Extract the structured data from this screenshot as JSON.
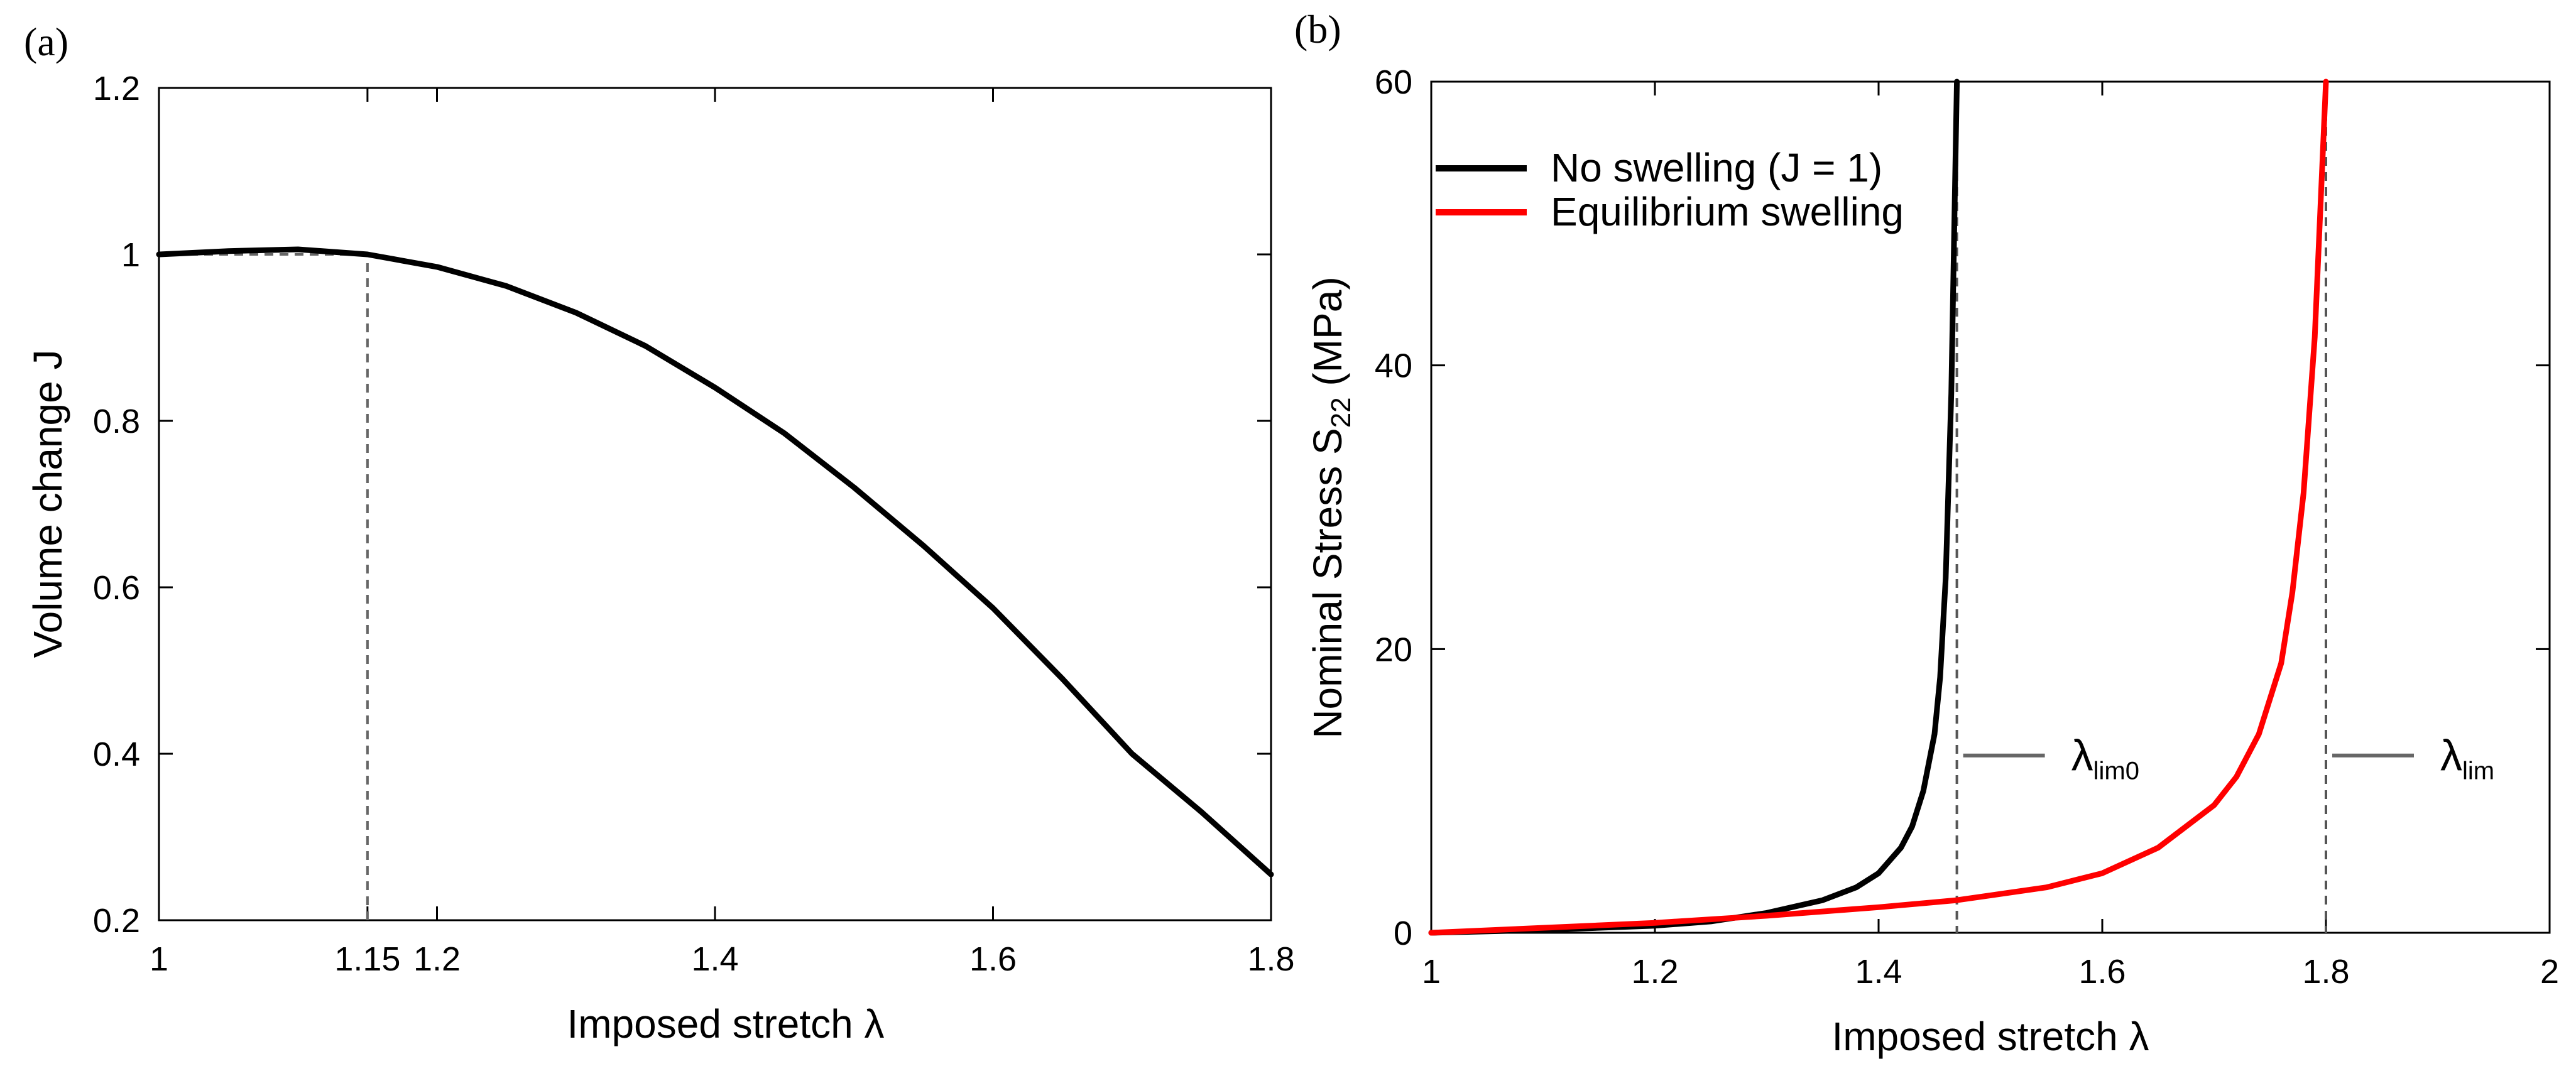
{
  "figure": {
    "panel_a_label": "(a)",
    "panel_b_label": "(b)"
  },
  "chart_data": [
    {
      "type": "line",
      "panel": "(a)",
      "xlabel": "Imposed stretch λ",
      "ylabel": "Volume change J",
      "xlim": [
        1,
        1.8
      ],
      "ylim": [
        0.2,
        1.2
      ],
      "xticks": [
        1,
        1.15,
        1.2,
        1.4,
        1.6,
        1.8
      ],
      "xtick_labels": [
        "1",
        "1.15",
        "1.2",
        "1.4",
        "1.6",
        "1.8"
      ],
      "yticks": [
        0.2,
        0.4,
        0.6,
        0.8,
        1,
        1.2
      ],
      "ytick_labels": [
        "0.2",
        "0.4",
        "0.6",
        "0.8",
        "1",
        "1.2"
      ],
      "grid": false,
      "series": [
        {
          "name": "J",
          "color": "#000000",
          "x": [
            1.0,
            1.05,
            1.1,
            1.15,
            1.2,
            1.25,
            1.3,
            1.35,
            1.4,
            1.45,
            1.5,
            1.55,
            1.6,
            1.65,
            1.7,
            1.75,
            1.8
          ],
          "y": [
            1.0,
            1.004,
            1.006,
            1.0,
            0.985,
            0.962,
            0.93,
            0.89,
            0.84,
            0.785,
            0.72,
            0.65,
            0.575,
            0.49,
            0.4,
            0.33,
            0.255
          ]
        }
      ],
      "guides": [
        {
          "kind": "vertical",
          "x": 1.15,
          "y_from": 0.2,
          "y_to": 1.0,
          "style": "dashed"
        },
        {
          "kind": "horizontal",
          "y": 1.0,
          "x_from": 1.0,
          "x_to": 1.15,
          "style": "dashed"
        }
      ]
    },
    {
      "type": "line",
      "panel": "(b)",
      "xlabel": "Imposed stretch λ",
      "ylabel_main": "Nominal Stress S",
      "ylabel_sub": "22",
      "ylabel_unit": " (MPa)",
      "xlim": [
        1,
        2
      ],
      "ylim": [
        0,
        60
      ],
      "xticks": [
        1,
        1.2,
        1.4,
        1.6,
        1.8,
        2
      ],
      "xtick_labels": [
        "1",
        "1.2",
        "1.4",
        "1.6",
        "1.8",
        "2"
      ],
      "yticks": [
        0,
        20,
        40,
        60
      ],
      "ytick_labels": [
        "0",
        "20",
        "40",
        "60"
      ],
      "grid": false,
      "legend_position": "top-left",
      "series": [
        {
          "name": "No swelling (J = 1)",
          "color": "#000000",
          "x": [
            1.0,
            1.1,
            1.2,
            1.25,
            1.3,
            1.35,
            1.38,
            1.4,
            1.42,
            1.43,
            1.44,
            1.45,
            1.455,
            1.46,
            1.465,
            1.47
          ],
          "y": [
            0.0,
            0.2,
            0.5,
            0.8,
            1.4,
            2.3,
            3.2,
            4.2,
            6.0,
            7.5,
            10.0,
            14.0,
            18.0,
            25.0,
            38.0,
            60.0
          ]
        },
        {
          "name": "Equilibrium swelling",
          "color": "#ff0000",
          "x": [
            1.0,
            1.1,
            1.2,
            1.3,
            1.4,
            1.47,
            1.55,
            1.6,
            1.65,
            1.7,
            1.72,
            1.74,
            1.76,
            1.77,
            1.78,
            1.79,
            1.8
          ],
          "y": [
            0.0,
            0.35,
            0.7,
            1.2,
            1.8,
            2.3,
            3.2,
            4.2,
            6.0,
            9.0,
            11.0,
            14.0,
            19.0,
            24.0,
            31.0,
            42.0,
            60.0
          ]
        }
      ],
      "asymptotes": [
        {
          "x": 1.47,
          "label_main": "λ",
          "label_sub": "lim0"
        },
        {
          "x": 1.8,
          "label_main": "λ",
          "label_sub": "lim"
        }
      ],
      "marker_line_y": 12.5
    }
  ]
}
